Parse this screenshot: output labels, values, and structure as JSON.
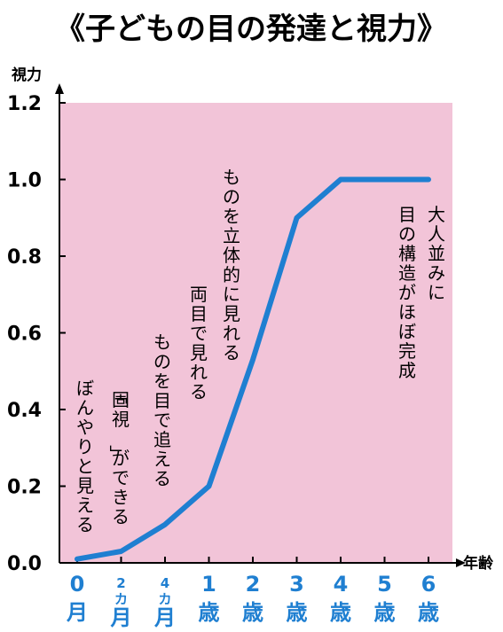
{
  "chart_data": {
    "type": "line",
    "title": "《子どもの目の発達と視力》",
    "ylabel": "視力",
    "xlabel": "年齢",
    "ylim": [
      0,
      1.2
    ],
    "yticks": [
      "0.0",
      "0.2",
      "0.4",
      "0.6",
      "0.8",
      "1.0",
      "1.2"
    ],
    "categories": [
      {
        "num": "0",
        "unit": "月",
        "small": false
      },
      {
        "num": "2",
        "unit": "カ月",
        "small": true
      },
      {
        "num": "4",
        "unit": "カ月",
        "small": true
      },
      {
        "num": "1",
        "unit": "歳",
        "small": false
      },
      {
        "num": "2",
        "unit": "歳",
        "small": false
      },
      {
        "num": "3",
        "unit": "歳",
        "small": false
      },
      {
        "num": "4",
        "unit": "歳",
        "small": false
      },
      {
        "num": "5",
        "unit": "歳",
        "small": false
      },
      {
        "num": "6",
        "unit": "歳",
        "small": false
      }
    ],
    "series": [
      {
        "x": [
          0,
          1,
          2,
          3,
          4,
          5,
          6,
          7,
          8
        ],
        "values": [
          0.01,
          0.03,
          0.1,
          0.2,
          0.53,
          0.9,
          1.0,
          1.0,
          1.0
        ]
      }
    ],
    "annotations": [
      {
        "text": "ぼんやりと見える"
      },
      {
        "text": "「固視」ができる"
      },
      {
        "text": "ものを目で追える"
      },
      {
        "text": "両目で見れる"
      },
      {
        "text": "ものを立体的に見れる"
      },
      {
        "text": "大人並みに"
      },
      {
        "text": "目の構造がほぼ完成"
      }
    ]
  },
  "colors": {
    "plot_bg": "#f2c4d8",
    "line": "#1f7fd1",
    "axis": "#000000",
    "tick_text": "#1f7fd1"
  }
}
